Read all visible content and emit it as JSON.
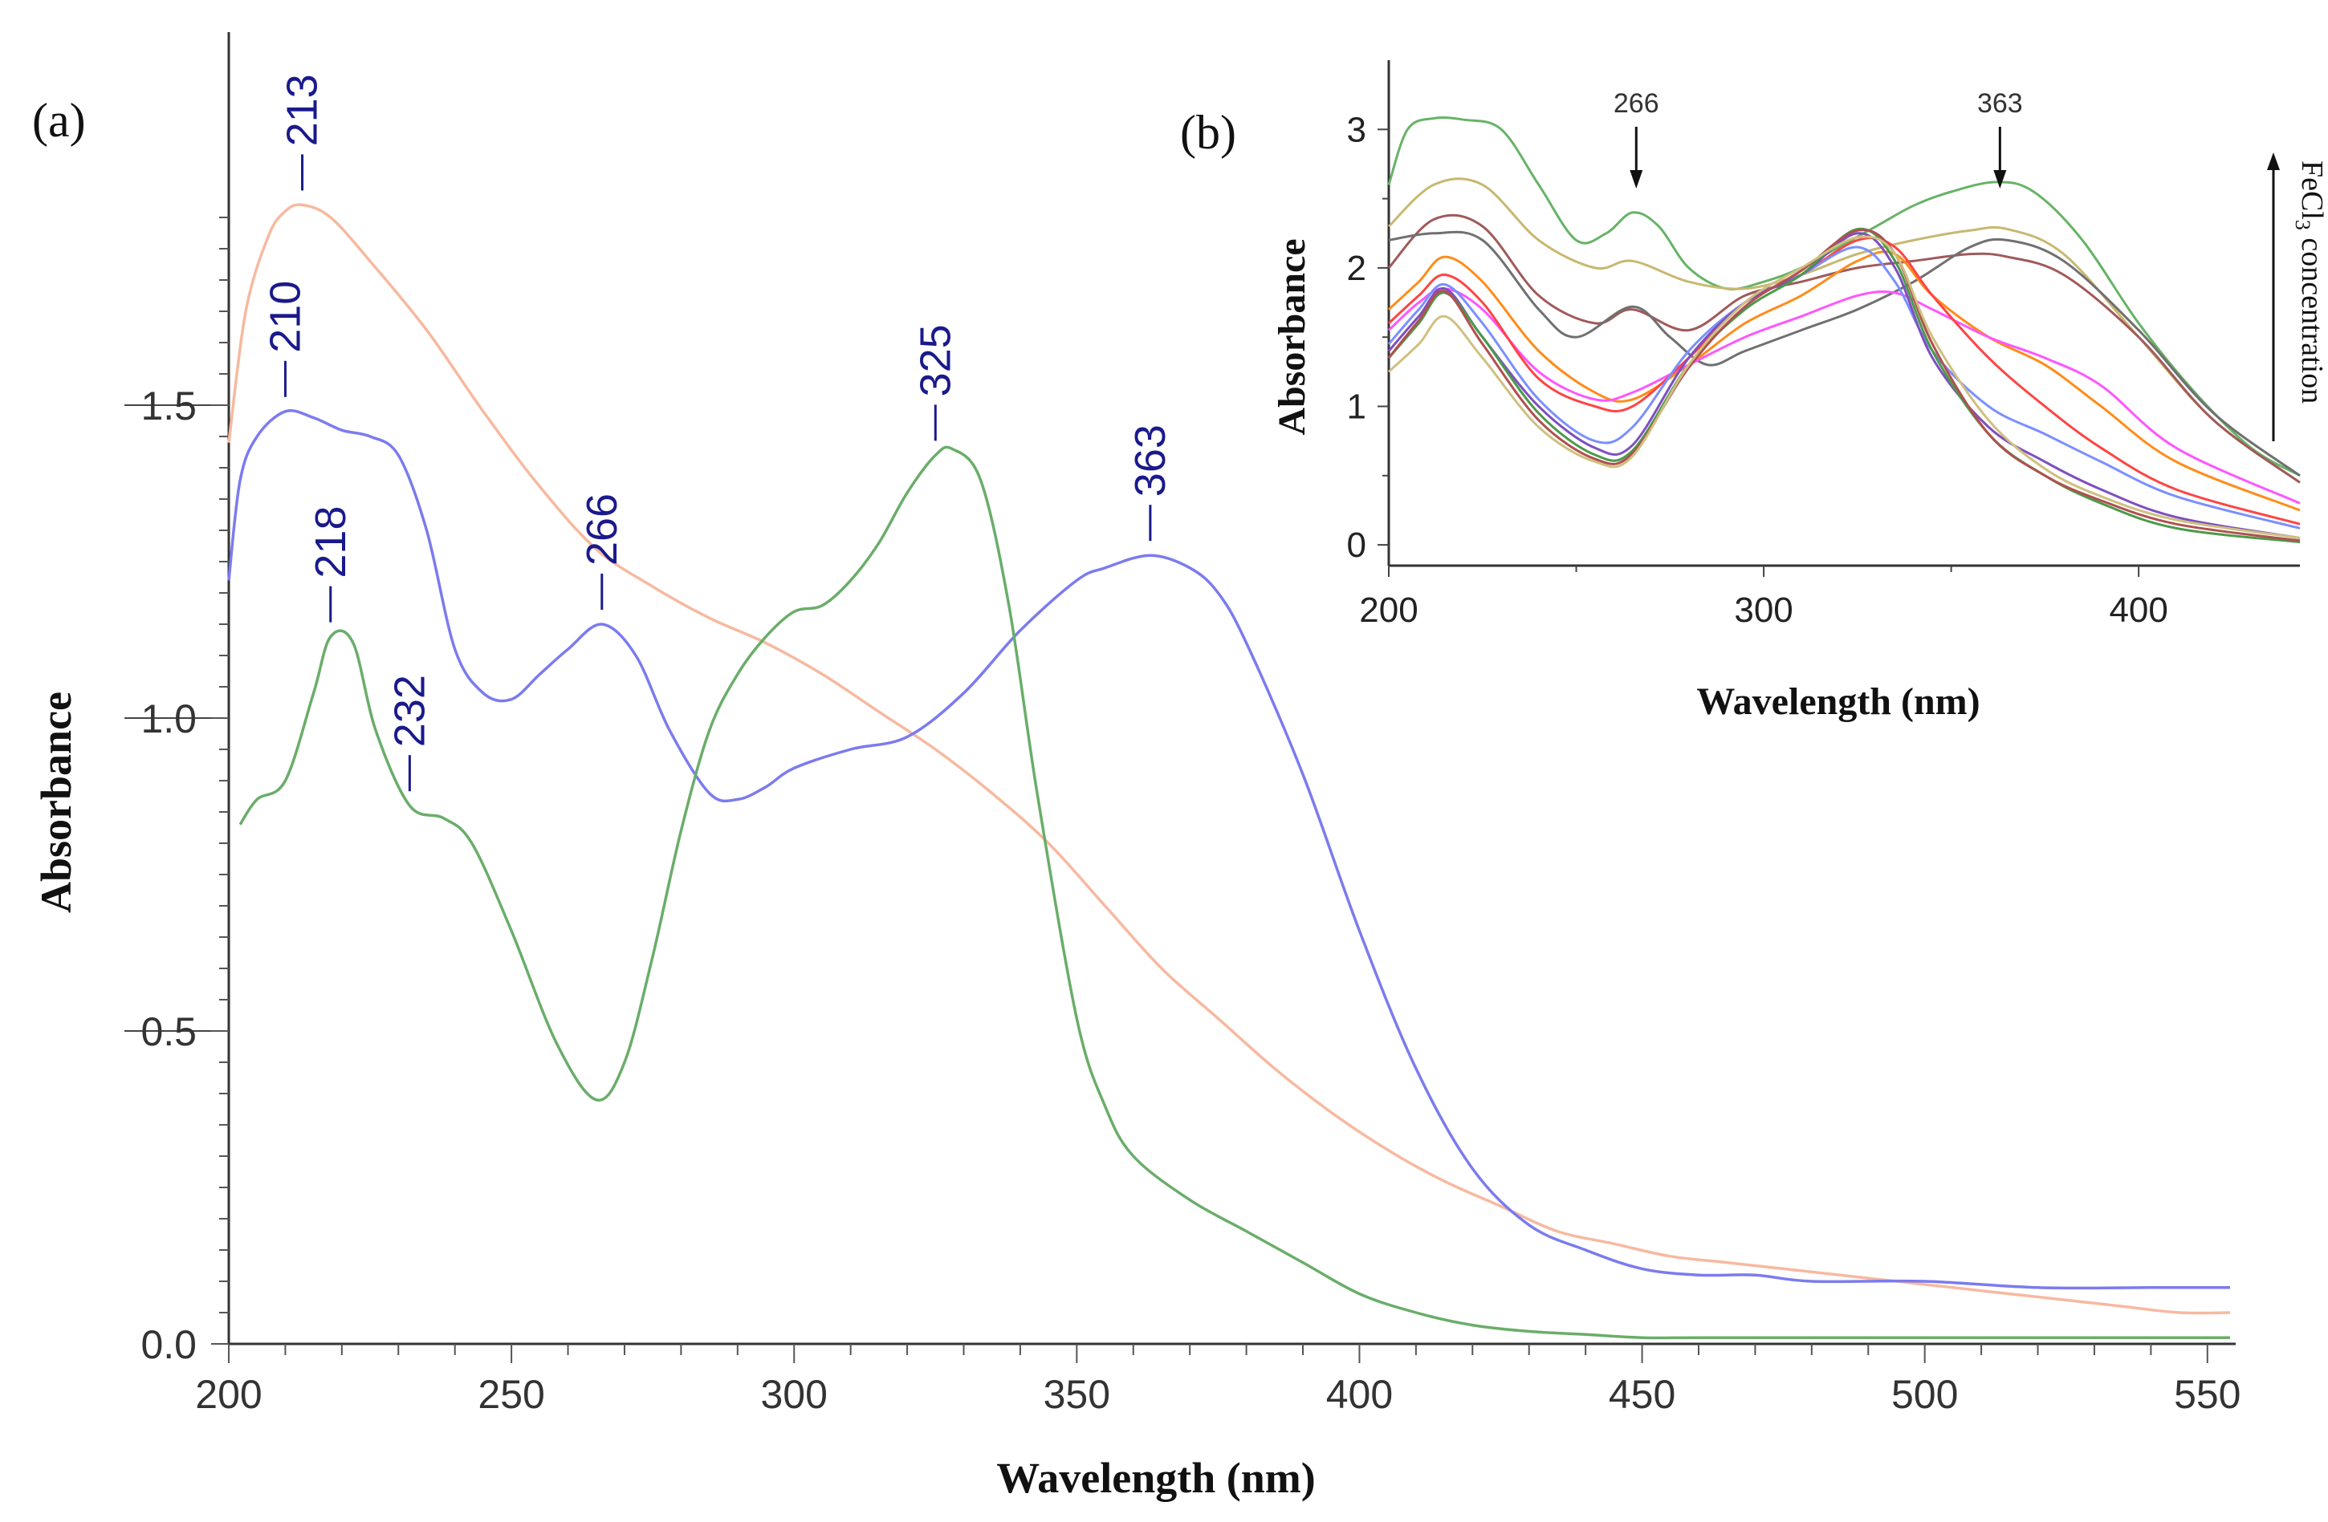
{
  "chart_data": [
    {
      "panel": "(a)",
      "type": "line",
      "xlabel": "Wavelength (nm)",
      "ylabel": "Absorbance",
      "xlim": [
        200,
        555
      ],
      "ylim": [
        0,
        1.9
      ],
      "xticks": [
        200,
        250,
        300,
        350,
        400,
        450,
        500,
        550
      ],
      "xtick_labels": [
        "200",
        "250",
        "300",
        "350",
        "400",
        "450",
        "500",
        "550"
      ],
      "yticks": [
        0.0,
        0.5,
        1.0,
        1.5
      ],
      "ytick_labels": [
        "0.0",
        "0.5",
        "1.0",
        "1.5"
      ],
      "series": [
        {
          "color": "#f7b9a0",
          "x": [
            200,
            203,
            207,
            210,
            213,
            218,
            225,
            235,
            245,
            255,
            265,
            275,
            285,
            295,
            305,
            315,
            325,
            335,
            345,
            355,
            365,
            375,
            385,
            395,
            405,
            415,
            425,
            435,
            445,
            455,
            465,
            475,
            485,
            495,
            505,
            515,
            525,
            535,
            545,
            554
          ],
          "y": [
            1.44,
            1.65,
            1.77,
            1.81,
            1.82,
            1.8,
            1.73,
            1.62,
            1.49,
            1.37,
            1.27,
            1.21,
            1.16,
            1.12,
            1.07,
            1.01,
            0.95,
            0.88,
            0.8,
            0.7,
            0.6,
            0.52,
            0.44,
            0.37,
            0.31,
            0.26,
            0.22,
            0.18,
            0.16,
            0.14,
            0.13,
            0.12,
            0.11,
            0.1,
            0.09,
            0.08,
            0.07,
            0.06,
            0.05,
            0.05
          ]
        },
        {
          "color": "#7b7bef",
          "x": [
            200,
            202,
            205,
            210,
            215,
            220,
            225,
            230,
            235,
            240,
            245,
            250,
            255,
            260,
            266,
            272,
            278,
            285,
            290,
            295,
            300,
            310,
            320,
            330,
            340,
            350,
            355,
            363,
            370,
            375,
            380,
            390,
            400,
            410,
            420,
            430,
            440,
            450,
            460,
            470,
            480,
            500,
            520,
            540,
            554
          ],
          "y": [
            1.22,
            1.38,
            1.45,
            1.49,
            1.48,
            1.46,
            1.45,
            1.42,
            1.3,
            1.11,
            1.04,
            1.03,
            1.07,
            1.11,
            1.15,
            1.1,
            0.98,
            0.88,
            0.87,
            0.89,
            0.92,
            0.95,
            0.97,
            1.04,
            1.14,
            1.22,
            1.24,
            1.26,
            1.24,
            1.2,
            1.12,
            0.91,
            0.66,
            0.44,
            0.28,
            0.19,
            0.15,
            0.12,
            0.11,
            0.11,
            0.1,
            0.1,
            0.09,
            0.09,
            0.09
          ]
        },
        {
          "color": "#6aad6a",
          "x": [
            202,
            205,
            210,
            215,
            218,
            222,
            226,
            232,
            238,
            243,
            250,
            258,
            265,
            270,
            275,
            280,
            285,
            290,
            295,
            300,
            305,
            310,
            315,
            320,
            325,
            328,
            333,
            338,
            343,
            350,
            355,
            360,
            370,
            380,
            390,
            400,
            410,
            420,
            430,
            440,
            450,
            460,
            480,
            500,
            520,
            540,
            554
          ],
          "y": [
            0.83,
            0.87,
            0.9,
            1.04,
            1.13,
            1.12,
            0.98,
            0.86,
            0.84,
            0.8,
            0.66,
            0.48,
            0.39,
            0.45,
            0.62,
            0.82,
            0.98,
            1.07,
            1.13,
            1.17,
            1.18,
            1.22,
            1.28,
            1.36,
            1.42,
            1.43,
            1.38,
            1.18,
            0.88,
            0.52,
            0.38,
            0.3,
            0.23,
            0.18,
            0.13,
            0.08,
            0.05,
            0.03,
            0.02,
            0.015,
            0.01,
            0.01,
            0.01,
            0.01,
            0.01,
            0.01,
            0.01
          ]
        }
      ],
      "annotations": [
        {
          "text": "213",
          "x": 213,
          "y": 1.82
        },
        {
          "text": "210",
          "x": 210,
          "y": 1.49
        },
        {
          "text": "218",
          "x": 218,
          "y": 1.13
        },
        {
          "text": "232",
          "x": 232,
          "y": 0.86
        },
        {
          "text": "266",
          "x": 266,
          "y": 1.15
        },
        {
          "text": "325",
          "x": 325,
          "y": 1.42
        },
        {
          "text": "363",
          "x": 363,
          "y": 1.26
        }
      ]
    },
    {
      "panel": "(b)",
      "type": "line",
      "xlabel": "Wavelength (nm)",
      "ylabel": "Absorbance",
      "xlim": [
        200,
        443
      ],
      "ylim": [
        -0.15,
        3.5
      ],
      "xticks": [
        200,
        300,
        400
      ],
      "xtick_labels": [
        "200",
        "300",
        "400"
      ],
      "yticks": [
        0,
        1,
        2,
        3
      ],
      "ytick_labels": [
        "0",
        "1",
        "2",
        "3"
      ],
      "arrows": [
        {
          "text": "266",
          "x": 266
        },
        {
          "text": "363",
          "x": 363
        }
      ],
      "side_label_prefix": "FeCl",
      "side_label_sub": "3",
      "side_label_suffix": " concentration",
      "series": [
        {
          "color": "#66b366",
          "x": [
            200,
            205,
            212,
            220,
            230,
            240,
            250,
            258,
            265,
            272,
            280,
            290,
            300,
            310,
            320,
            330,
            340,
            350,
            362,
            372,
            385,
            400,
            415,
            430,
            443
          ],
          "y": [
            2.6,
            3.0,
            3.08,
            3.07,
            3.0,
            2.6,
            2.2,
            2.25,
            2.4,
            2.3,
            2.0,
            1.85,
            1.9,
            2.0,
            2.15,
            2.3,
            2.45,
            2.55,
            2.62,
            2.55,
            2.2,
            1.6,
            1.1,
            0.7,
            0.5
          ]
        },
        {
          "color": "#c8b870",
          "x": [
            200,
            212,
            225,
            240,
            255,
            265,
            280,
            295,
            310,
            325,
            340,
            355,
            365,
            380,
            400,
            420,
            443
          ],
          "y": [
            2.3,
            2.6,
            2.6,
            2.2,
            2.0,
            2.05,
            1.9,
            1.85,
            1.95,
            2.1,
            2.2,
            2.27,
            2.28,
            2.1,
            1.5,
            0.9,
            0.45
          ]
        },
        {
          "color": "#a05a5a",
          "x": [
            200,
            212,
            225,
            240,
            255,
            265,
            280,
            295,
            310,
            325,
            340,
            355,
            365,
            380,
            400,
            420,
            443
          ],
          "y": [
            2.0,
            2.35,
            2.3,
            1.8,
            1.6,
            1.7,
            1.55,
            1.8,
            1.9,
            2.0,
            2.05,
            2.1,
            2.08,
            1.95,
            1.5,
            0.9,
            0.45
          ]
        },
        {
          "color": "#707070",
          "x": [
            200,
            212,
            225,
            240,
            250,
            265,
            275,
            285,
            295,
            310,
            325,
            340,
            355,
            365,
            380,
            400,
            420,
            443
          ],
          "y": [
            2.2,
            2.25,
            2.2,
            1.7,
            1.5,
            1.72,
            1.5,
            1.3,
            1.4,
            1.55,
            1.7,
            1.9,
            2.15,
            2.2,
            2.05,
            1.55,
            0.95,
            0.5
          ]
        },
        {
          "color": "#ff8c1a",
          "x": [
            200,
            208,
            215,
            225,
            240,
            255,
            265,
            280,
            295,
            310,
            325,
            335,
            345,
            360,
            375,
            390,
            410,
            443
          ],
          "y": [
            1.7,
            1.9,
            2.08,
            1.9,
            1.4,
            1.1,
            1.05,
            1.3,
            1.6,
            1.8,
            2.05,
            2.1,
            1.8,
            1.5,
            1.3,
            1.0,
            0.6,
            0.25
          ]
        },
        {
          "color": "#ff55ff",
          "x": [
            200,
            208,
            215,
            225,
            240,
            255,
            265,
            280,
            295,
            310,
            325,
            335,
            345,
            360,
            375,
            390,
            410,
            443
          ],
          "y": [
            1.55,
            1.75,
            1.85,
            1.7,
            1.25,
            1.05,
            1.1,
            1.3,
            1.5,
            1.65,
            1.8,
            1.82,
            1.7,
            1.5,
            1.35,
            1.15,
            0.7,
            0.3
          ]
        },
        {
          "color": "#ff4444",
          "x": [
            200,
            208,
            215,
            225,
            240,
            255,
            265,
            280,
            295,
            310,
            325,
            335,
            345,
            360,
            375,
            390,
            410,
            443
          ],
          "y": [
            1.6,
            1.8,
            1.95,
            1.75,
            1.2,
            1.0,
            1.0,
            1.35,
            1.75,
            1.95,
            2.2,
            2.15,
            1.8,
            1.35,
            1.0,
            0.7,
            0.4,
            0.15
          ]
        },
        {
          "color": "#7b8fff",
          "x": [
            200,
            208,
            215,
            225,
            240,
            255,
            265,
            280,
            295,
            310,
            325,
            335,
            345,
            360,
            375,
            390,
            410,
            443
          ],
          "y": [
            1.45,
            1.7,
            1.88,
            1.6,
            1.05,
            0.75,
            0.85,
            1.4,
            1.75,
            1.95,
            2.15,
            1.9,
            1.4,
            1.0,
            0.8,
            0.6,
            0.35,
            0.12
          ]
        },
        {
          "color": "#7f4fbf",
          "x": [
            200,
            208,
            215,
            225,
            240,
            255,
            265,
            280,
            295,
            310,
            325,
            335,
            345,
            360,
            375,
            390,
            410,
            443
          ],
          "y": [
            1.4,
            1.65,
            1.85,
            1.5,
            1.0,
            0.7,
            0.72,
            1.35,
            1.75,
            1.95,
            2.25,
            2.0,
            1.35,
            0.85,
            0.6,
            0.4,
            0.2,
            0.05
          ]
        },
        {
          "color": "#4a9a4a",
          "x": [
            200,
            208,
            215,
            225,
            240,
            255,
            265,
            280,
            295,
            310,
            325,
            335,
            345,
            360,
            375,
            390,
            410,
            443
          ],
          "y": [
            1.35,
            1.6,
            1.82,
            1.5,
            0.95,
            0.65,
            0.68,
            1.3,
            1.7,
            1.95,
            2.28,
            2.05,
            1.4,
            0.8,
            0.5,
            0.3,
            0.12,
            0.02
          ]
        },
        {
          "color": "#b05050",
          "x": [
            200,
            208,
            215,
            225,
            240,
            255,
            265,
            280,
            295,
            310,
            325,
            335,
            345,
            360,
            375,
            390,
            410,
            443
          ],
          "y": [
            1.35,
            1.62,
            1.83,
            1.45,
            0.9,
            0.62,
            0.66,
            1.28,
            1.72,
            1.98,
            2.27,
            2.1,
            1.45,
            0.8,
            0.5,
            0.32,
            0.15,
            0.03
          ]
        },
        {
          "color": "#cfc080",
          "x": [
            200,
            208,
            215,
            225,
            240,
            255,
            265,
            280,
            295,
            310,
            325,
            335,
            345,
            360,
            375,
            390,
            410,
            443
          ],
          "y": [
            1.25,
            1.45,
            1.65,
            1.35,
            0.85,
            0.6,
            0.64,
            1.3,
            1.75,
            2.0,
            2.22,
            2.1,
            1.5,
            0.9,
            0.55,
            0.35,
            0.18,
            0.05
          ]
        }
      ]
    }
  ]
}
